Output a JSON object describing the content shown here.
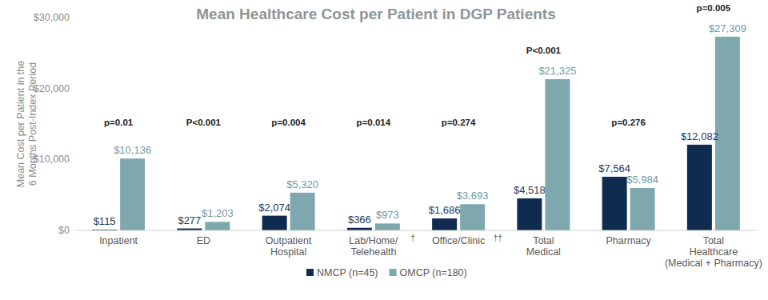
{
  "chart_data": {
    "type": "bar",
    "title": "Mean Healthcare Cost per Patient in DGP Patients",
    "y_label": "Mean Cost per Patient in the\n6 Months Post-Index Period",
    "categories": [
      "Inpatient",
      "ED",
      "Outpatient\nHospital",
      "Lab/Home/\nTelehealth",
      "Office/Clinic",
      "Total\nMedical",
      "Pharmacy",
      "Total\nHealthcare\n(Medical + Pharmacy)"
    ],
    "series": [
      {
        "name": "NMCP (n=45)",
        "color": "#0f2b4f",
        "values": [
          115,
          277,
          2074,
          366,
          1686,
          4518,
          7564,
          12082
        ],
        "value_labels": [
          "$115",
          "$277",
          "$2,074",
          "$366",
          "$1,686",
          "$4,518",
          "$7,564",
          "$12,082"
        ]
      },
      {
        "name": "OMCP (n=180)",
        "color": "#7fa8ae",
        "values": [
          10136,
          1203,
          5320,
          973,
          3693,
          21325,
          5984,
          27309
        ],
        "value_labels": [
          "$10,136",
          "$1,203",
          "$5,320",
          "$973",
          "$3,693",
          "$21,325",
          "$5,984",
          "$27,309"
        ]
      }
    ],
    "p_values": [
      "p=0.01",
      "P<0.001",
      "p=0.004",
      "p=0.014",
      "p=0.274",
      "P<0.001",
      "p=0.276",
      "p=0.005"
    ],
    "annotations": [
      {
        "text": "†",
        "category": "Lab/Home/\nTelehealth"
      },
      {
        "text": "††",
        "category": "Office/Clinic"
      }
    ],
    "ylim": [
      0,
      30000
    ],
    "yticks": [
      {
        "value": 0,
        "label": "$0"
      },
      {
        "value": 10000,
        "label": "$10,000"
      },
      {
        "value": 20000,
        "label": "$20,000"
      },
      {
        "value": 30000,
        "label": "$30,000"
      }
    ],
    "grid": false,
    "legend": "bottom",
    "data_labels": true
  }
}
